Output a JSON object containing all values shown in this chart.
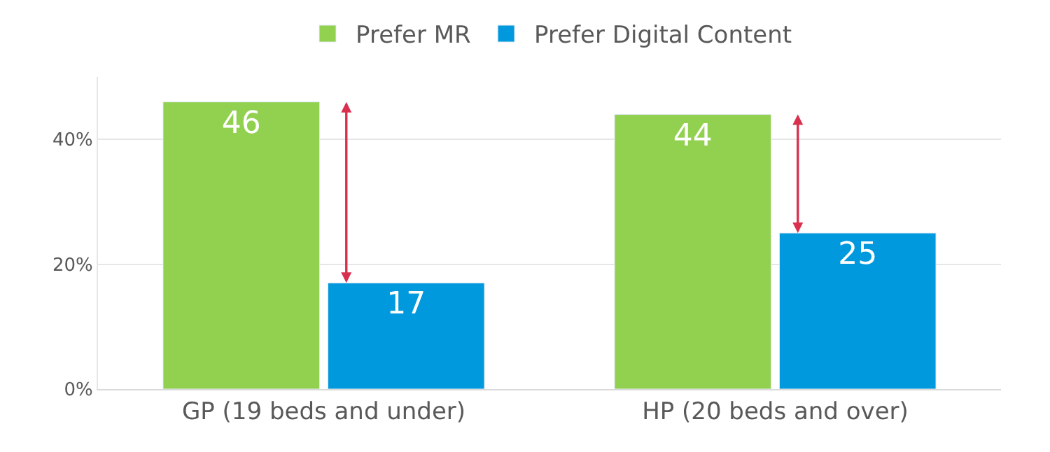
{
  "chart_data": {
    "type": "bar",
    "categories": [
      "GP (19 beds and under)",
      "HP (20 beds and over)"
    ],
    "series": [
      {
        "name": "Prefer MR",
        "color": "#92d050",
        "values": [
          46,
          44
        ]
      },
      {
        "name": "Prefer Digital Content",
        "color": "#0099dd",
        "values": [
          17,
          25
        ]
      }
    ],
    "ylim": [
      0,
      50
    ],
    "yticks": [
      {
        "value": 0,
        "label": "0%"
      },
      {
        "value": 20,
        "label": "20%"
      },
      {
        "value": 40,
        "label": "40%"
      }
    ],
    "grid": "y",
    "legend": "top",
    "data_labels": true
  }
}
